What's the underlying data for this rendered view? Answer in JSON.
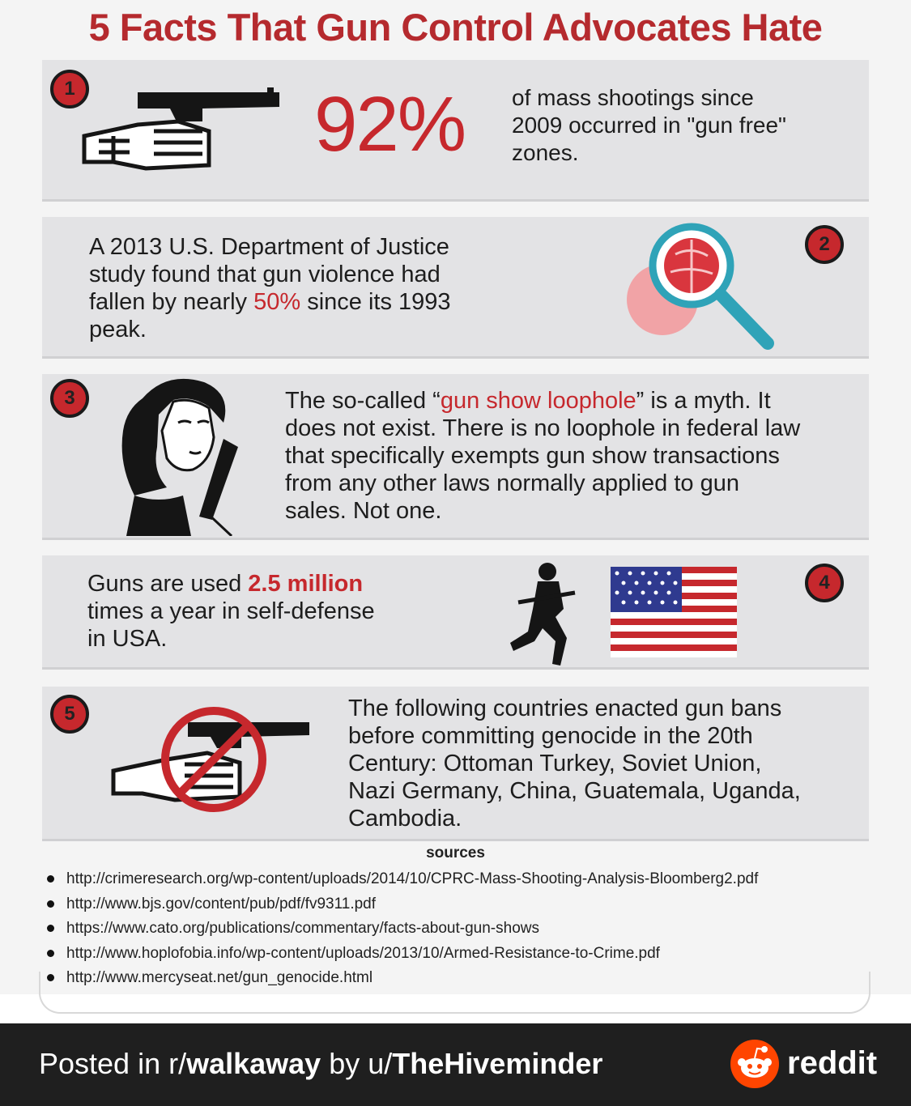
{
  "title": "5 Facts That Gun Control Advocates Hate",
  "facts": [
    {
      "number": "1",
      "big": "92%",
      "text": "of mass shootings since 2009 occurred in \"gun free\" zones.",
      "line1": "of mass shootings since",
      "line2": "2009 occurred in \"gun free\"",
      "line3": "zones.",
      "icon": "hand-pistol-icon"
    },
    {
      "number": "2",
      "line1": "A 2013 U.S. Department of Justice",
      "line2": "study found that gun violence had",
      "line3a": "fallen by nearly ",
      "highlight": "50%",
      "line3b": " since its 1993",
      "line4": "peak.",
      "icon": "magnifier-globe-icon"
    },
    {
      "number": "3",
      "line1a": "The so-called “",
      "highlight": "gun show loophole",
      "line1b": "” is a myth. It",
      "line2": "does not exist. There is no loophole in federal law",
      "line3": "that specifically exempts gun show transactions",
      "line4": "from any other laws normally applied to gun",
      "line5": "sales. Not one.",
      "icon": "woman-with-gun-icon"
    },
    {
      "number": "4",
      "line1a": "Guns are used ",
      "highlight": "2.5 million",
      "line2": "times a year in self-defense",
      "line3": "in USA.",
      "icon": "kneeling-soldier-icon",
      "icon2": "us-flag-icon"
    },
    {
      "number": "5",
      "line1": "The following countries enacted gun bans",
      "line2": "before committing genocide in the 20th",
      "line3": "Century: Ottoman Turkey, Soviet Union,",
      "line4": "Nazi Germany, China, Guatemala, Uganda,",
      "line5": "Cambodia.",
      "icon": "no-guns-icon"
    }
  ],
  "sources": {
    "title": "sources",
    "items": [
      "http://crimeresearch.org/wp-content/uploads/2014/10/CPRC-Mass-Shooting-Analysis-Bloomberg2.pdf",
      "http://www.bjs.gov/content/pub/pdf/fv9311.pdf",
      "https://www.cato.org/publications/commentary/facts-about-gun-shows",
      "http://www.hoplofobia.info/wp-content/uploads/2013/10/Armed-Resistance-to-Crime.pdf",
      "http://www.mercyseat.net/gun_genocide.html"
    ]
  },
  "footer": {
    "posted_prefix": "Posted in r/",
    "subreddit": "walkaway",
    "by": " by u/",
    "user": "TheHiveminder",
    "brand": "reddit",
    "brand_color": "#ff4500"
  },
  "colors": {
    "accent_red": "#c6282d",
    "panel": "#e3e3e5",
    "footer_bg": "#1f1f1f"
  }
}
